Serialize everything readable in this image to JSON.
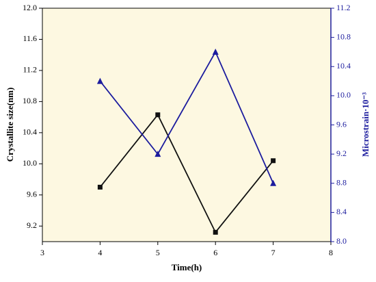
{
  "chart_data": {
    "type": "line",
    "x_label": "Time(h)",
    "y_label": "Crystallite size(nm)",
    "y2_label": "Microstrain·10⁻³",
    "background": "#fdf8e1",
    "xlim": [
      3,
      8
    ],
    "xticks": [
      3,
      4,
      5,
      6,
      7,
      8
    ],
    "ylim": [
      9.0,
      12.0
    ],
    "yticks": [
      9.2,
      9.6,
      {
        "value": 10,
        "label": "10.0"
      },
      10.4,
      10.8,
      11.2,
      11.6,
      {
        "value": 12,
        "label": "12.0"
      }
    ],
    "y2lim": [
      8.0,
      11.2
    ],
    "y2ticks": [
      {
        "value": 8,
        "label": "8.0"
      },
      8.4,
      8.8,
      9.2,
      9.6,
      {
        "value": 10,
        "label": "10.0"
      },
      10.4,
      10.8,
      11.2
    ],
    "y2_color": "#1c1c9e",
    "x": [
      4,
      5,
      6,
      7
    ],
    "series": [
      {
        "name": "Crystallite size",
        "color": "#111111",
        "marker": "square",
        "values": [
          9.7,
          10.63,
          9.12,
          10.04
        ]
      },
      {
        "name": "Microstrain",
        "color": "#1c1c9e",
        "marker": "triangle",
        "axis": "y2",
        "values": [
          10.2,
          9.2,
          10.6,
          8.8
        ]
      }
    ]
  }
}
